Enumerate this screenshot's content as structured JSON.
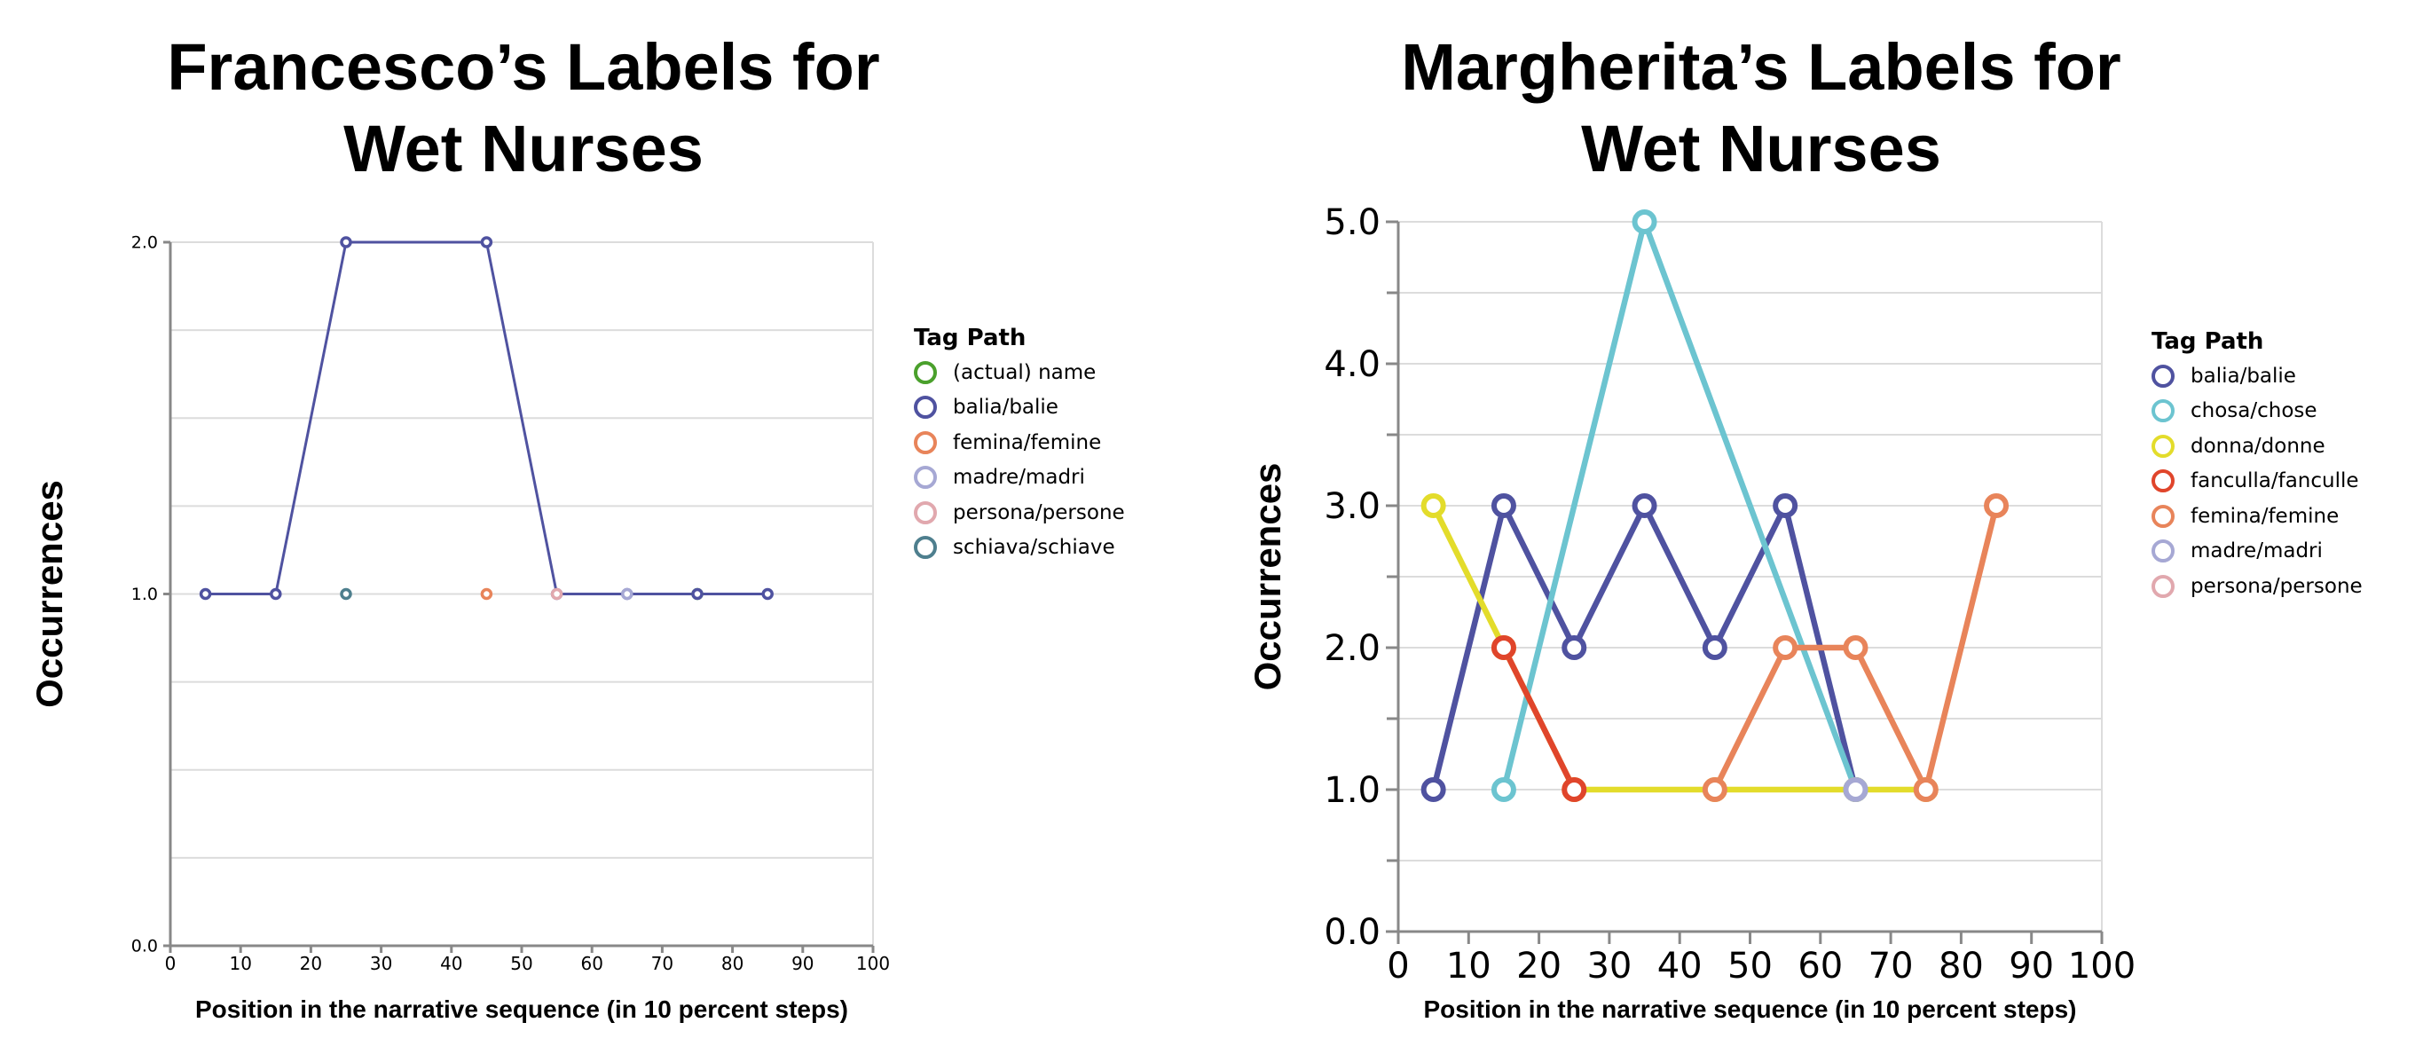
{
  "chart_data": [
    {
      "type": "line",
      "title_lines": [
        "Francesco’s Labels for",
        "Wet Nurses"
      ],
      "xlabel": "Position in the narrative sequence (in 10 percent steps)",
      "ylabel": "Occurrences",
      "xlim": [
        0,
        100
      ],
      "ylim": [
        0,
        2
      ],
      "x_ticks": [
        "0",
        "10",
        "20",
        "30",
        "40",
        "50",
        "60",
        "70",
        "80",
        "90",
        "100"
      ],
      "y_ticks": [
        "0.0",
        "1.0",
        "2.0"
      ],
      "grid": true,
      "legend_title": "Tag Path",
      "legend_position": "right",
      "series": [
        {
          "name": "(actual) name",
          "color": "#4aa02c",
          "points": [
            [
              75,
              1
            ]
          ]
        },
        {
          "name": "balia/balie",
          "color": "#4f52a0",
          "points": [
            [
              5,
              1
            ],
            [
              15,
              1
            ],
            [
              25,
              2
            ],
            [
              45,
              2
            ],
            [
              55,
              1
            ],
            [
              65,
              1
            ],
            [
              75,
              1
            ],
            [
              85,
              1
            ]
          ]
        },
        {
          "name": "femina/femine",
          "color": "#e8845a",
          "points": [
            [
              45,
              1
            ]
          ]
        },
        {
          "name": "madre/madri",
          "color": "#a6a8d4",
          "points": [
            [
              65,
              1
            ]
          ]
        },
        {
          "name": "persona/persone",
          "color": "#e1a8ae",
          "points": [
            [
              55,
              1
            ]
          ]
        },
        {
          "name": "schiava/schiave",
          "color": "#4e7f8e",
          "points": [
            [
              25,
              1
            ]
          ]
        }
      ]
    },
    {
      "type": "line",
      "title_lines": [
        "Margherita’s Labels for",
        "Wet Nurses"
      ],
      "xlabel": "Position in the narrative sequence (in 10 percent steps)",
      "ylabel": "Occurrences",
      "xlim": [
        0,
        100
      ],
      "ylim": [
        0,
        5
      ],
      "x_ticks": [
        "0",
        "10",
        "20",
        "30",
        "40",
        "50",
        "60",
        "70",
        "80",
        "90",
        "100"
      ],
      "y_ticks": [
        "0.0",
        "1.0",
        "2.0",
        "3.0",
        "4.0",
        "5.0"
      ],
      "grid": true,
      "legend_title": "Tag Path",
      "legend_position": "right",
      "series": [
        {
          "name": "balia/balie",
          "color": "#4f52a0",
          "points": [
            [
              5,
              1
            ],
            [
              15,
              3
            ],
            [
              25,
              2
            ],
            [
              35,
              3
            ],
            [
              45,
              2
            ],
            [
              55,
              3
            ],
            [
              65,
              1
            ]
          ]
        },
        {
          "name": "chosa/chose",
          "color": "#6cc4d0",
          "points": [
            [
              15,
              1
            ],
            [
              35,
              5
            ],
            [
              65,
              1
            ]
          ]
        },
        {
          "name": "donna/donne",
          "color": "#e3dc2b",
          "points": [
            [
              5,
              3
            ],
            [
              15,
              2
            ],
            [
              25,
              1
            ],
            [
              45,
              1
            ],
            [
              65,
              1
            ],
            [
              75,
              1
            ]
          ]
        },
        {
          "name": "fanculla/fanculle",
          "color": "#e0452b",
          "points": [
            [
              15,
              2
            ],
            [
              25,
              1
            ]
          ]
        },
        {
          "name": "femina/femine",
          "color": "#e8845a",
          "points": [
            [
              45,
              1
            ],
            [
              55,
              2
            ],
            [
              65,
              2
            ],
            [
              75,
              1
            ],
            [
              85,
              3
            ]
          ]
        },
        {
          "name": "madre/madri",
          "color": "#a6a8d4",
          "points": [
            [
              65,
              1
            ]
          ]
        },
        {
          "name": "persona/persone",
          "color": "#e1a8ae",
          "points": []
        }
      ]
    }
  ]
}
